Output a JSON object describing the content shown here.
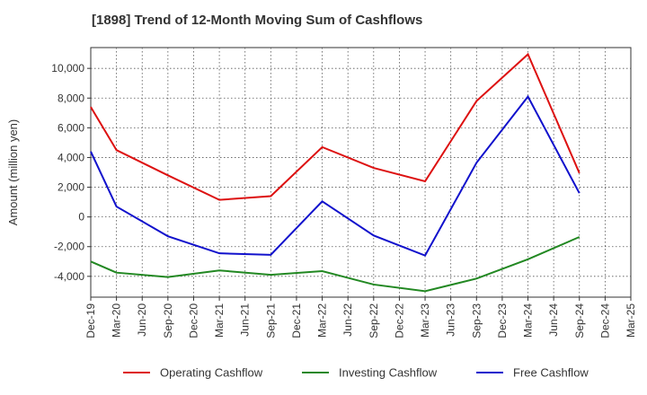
{
  "chart_data": {
    "type": "line",
    "title": "[1898]  Trend of 12-Month Moving Sum of Cashflows",
    "ylabel": "Amount (million yen)",
    "xlabel": "",
    "x": [
      "Dec-19",
      "Mar-20",
      "Jun-20",
      "Sep-20",
      "Dec-20",
      "Mar-21",
      "Jun-21",
      "Sep-21",
      "Dec-21",
      "Mar-22",
      "Jun-22",
      "Sep-22",
      "Dec-22",
      "Mar-23",
      "Jun-23",
      "Sep-23",
      "Dec-23",
      "Mar-24",
      "Jun-24",
      "Sep-24",
      "Dec-24",
      "Mar-25"
    ],
    "ylim": [
      -5400,
      11400
    ],
    "yticks": [
      -4000,
      -2000,
      0,
      2000,
      4000,
      6000,
      8000,
      10000
    ],
    "ytick_labels": [
      "-4,000",
      "-2,000",
      "0",
      "2,000",
      "4,000",
      "6,000",
      "8,000",
      "10,000"
    ],
    "grid": true,
    "legend_position": "bottom",
    "series": [
      {
        "name": "Operating Cashflow",
        "color": "#dd1111",
        "values": [
          7400,
          4500,
          null,
          2800,
          null,
          1150,
          null,
          1400,
          null,
          4700,
          null,
          3300,
          null,
          2400,
          null,
          7800,
          null,
          10950,
          null,
          2950,
          null,
          null
        ]
      },
      {
        "name": "Investing Cashflow",
        "color": "#228822",
        "values": [
          -3000,
          -3750,
          null,
          -4050,
          null,
          -3600,
          null,
          -3900,
          null,
          -3650,
          null,
          -4550,
          null,
          -5000,
          null,
          -4150,
          null,
          -2850,
          null,
          -1350,
          null,
          null
        ]
      },
      {
        "name": "Free Cashflow",
        "color": "#1111cc",
        "values": [
          4400,
          700,
          null,
          -1300,
          null,
          -2450,
          null,
          -2550,
          null,
          1050,
          null,
          -1250,
          null,
          -2600,
          null,
          3650,
          null,
          8100,
          null,
          1600,
          null,
          null
        ]
      }
    ]
  }
}
